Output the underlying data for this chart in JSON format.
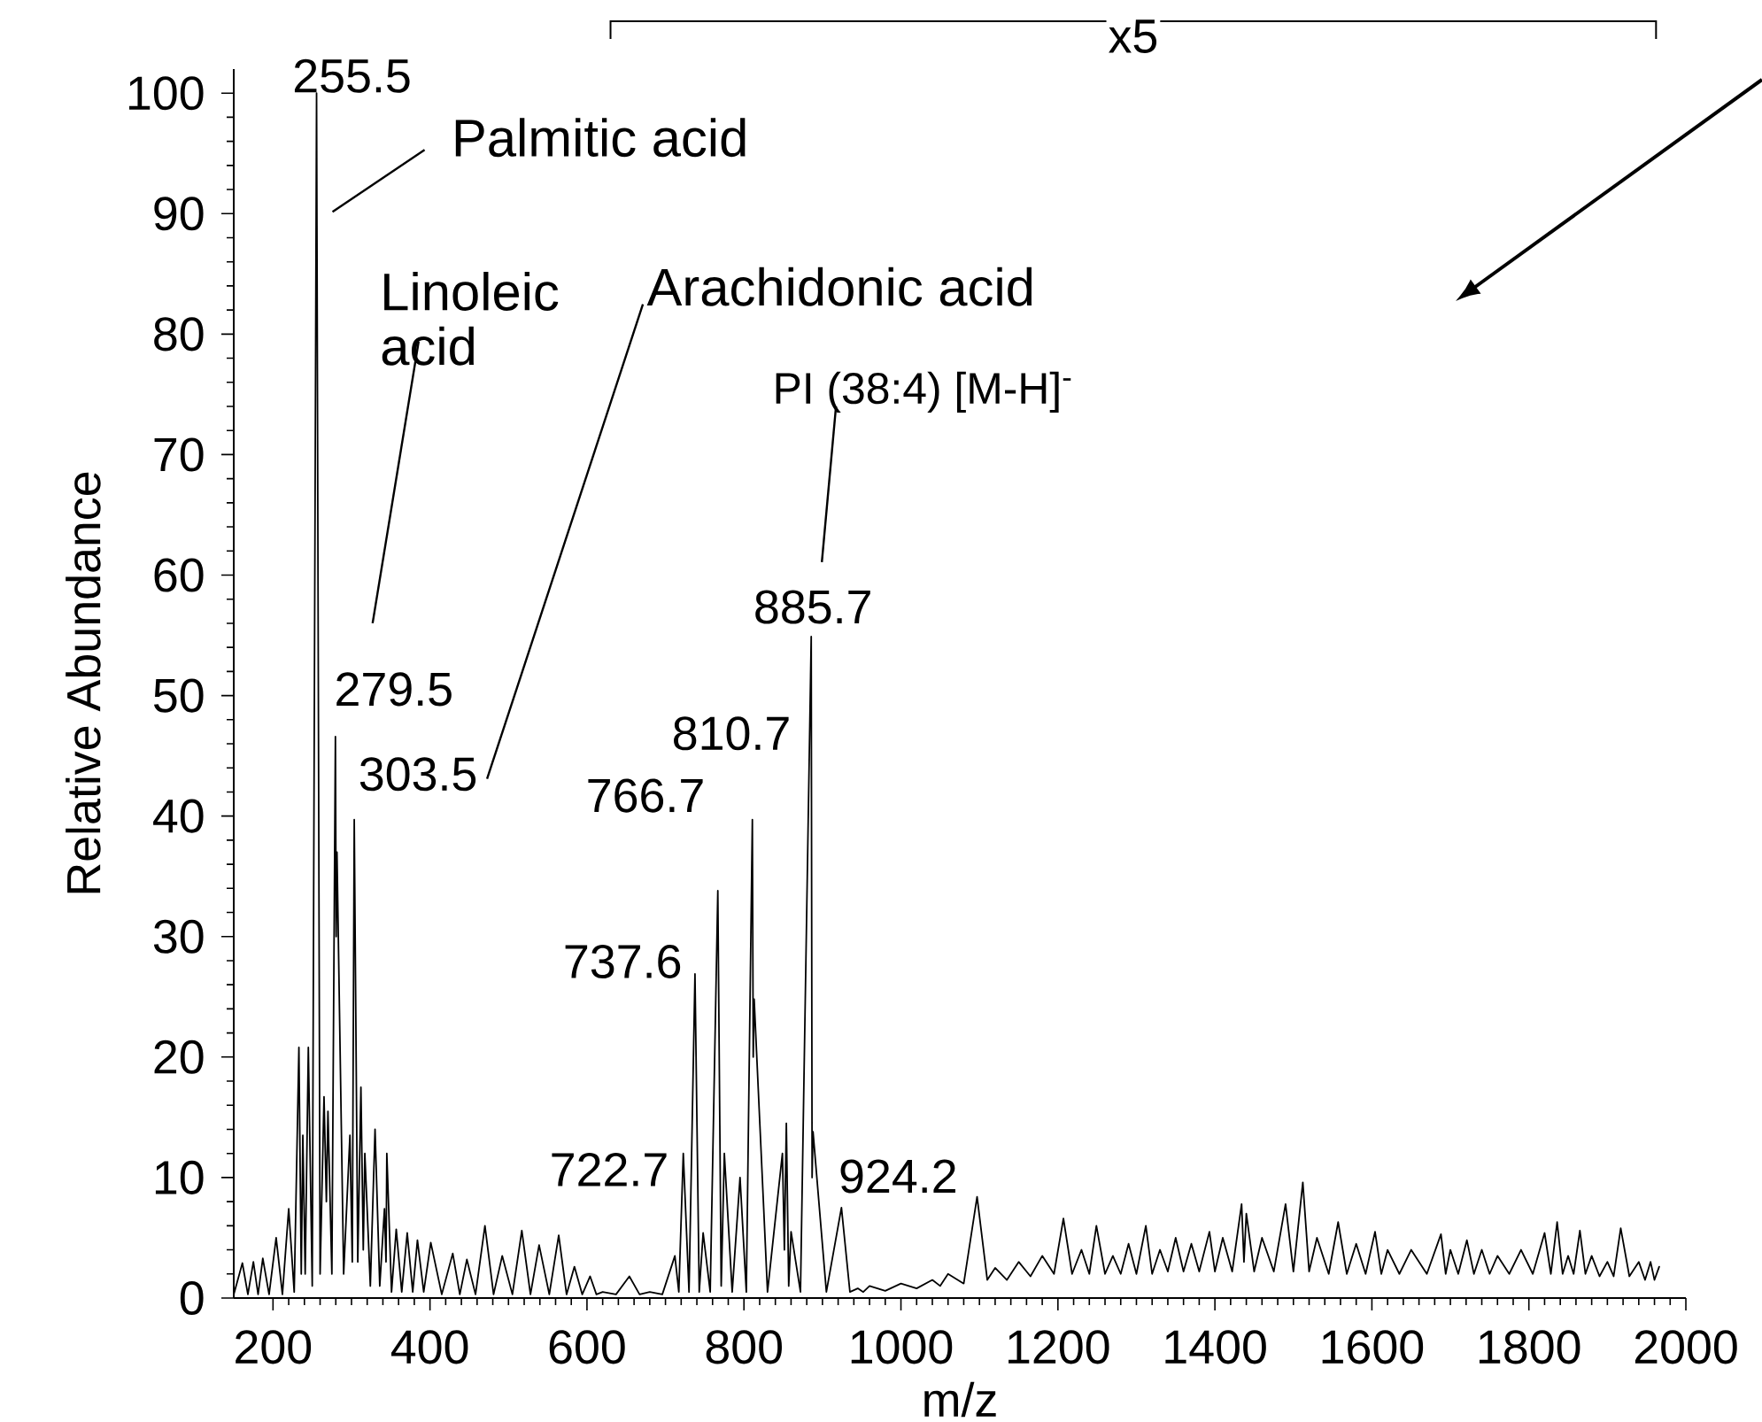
{
  "chart_data": {
    "type": "line",
    "xlabel": "m/z",
    "ylabel": "Relative Abundance",
    "x": [
      150,
      161,
      168,
      175,
      181,
      187,
      195,
      204,
      212,
      220,
      227,
      233,
      236,
      238,
      241,
      245,
      250,
      255.5,
      260,
      265,
      268,
      270,
      275,
      279.5,
      280.5,
      281.5,
      290,
      298,
      301,
      303.5,
      308,
      312,
      315,
      317,
      324,
      330,
      336,
      342,
      344,
      345,
      351,
      357,
      364,
      371,
      378,
      384,
      392,
      401,
      415,
      429,
      438,
      447,
      458,
      470,
      481,
      492,
      505,
      517,
      528,
      539,
      552,
      564,
      574,
      584,
      594,
      604,
      612,
      620,
      637,
      654,
      667,
      680,
      696,
      712,
      717,
      722.7,
      730,
      737.6,
      743,
      748,
      757,
      766.7,
      771,
      775,
      785,
      795,
      803,
      810.7,
      811.8,
      813,
      830,
      849,
      851.5,
      854,
      857,
      860,
      872,
      885.7,
      886.8,
      888,
      905,
      924.2,
      935,
      945,
      952,
      960,
      980,
      1000,
      1020,
      1040,
      1050,
      1060,
      1080,
      1097,
      1110,
      1120,
      1135,
      1150,
      1165,
      1180,
      1195,
      1207,
      1218,
      1230,
      1240,
      1249,
      1260,
      1270,
      1280,
      1290,
      1300,
      1312,
      1320,
      1330,
      1340,
      1350,
      1360,
      1370,
      1380,
      1393,
      1400,
      1410,
      1422,
      1434,
      1437,
      1440,
      1450,
      1460,
      1475,
      1490,
      1500,
      1512,
      1520,
      1530,
      1545,
      1557,
      1568,
      1580,
      1592,
      1604,
      1612,
      1620,
      1635,
      1650,
      1670,
      1688,
      1694,
      1700,
      1710,
      1721,
      1730,
      1740,
      1750,
      1760,
      1775,
      1790,
      1805,
      1820,
      1828,
      1836,
      1843,
      1850,
      1857,
      1865,
      1872,
      1880,
      1890,
      1900,
      1908,
      1917,
      1928,
      1940,
      1948,
      1955,
      1960,
      1966
    ],
    "values": [
      0.3,
      2.9,
      0.3,
      3,
      0.3,
      3.3,
      0.3,
      5,
      0.3,
      7.4,
      0.5,
      20.8,
      2,
      13.5,
      2,
      20.8,
      1,
      100,
      2,
      16.7,
      8,
      15.5,
      2,
      46.6,
      30,
      37,
      2,
      13.5,
      3,
      39.7,
      3,
      17.5,
      4,
      12,
      1,
      14,
      1,
      7.4,
      3,
      12,
      0.5,
      5.7,
      0.5,
      5.4,
      0.5,
      4.8,
      0.5,
      4.6,
      0.3,
      3.7,
      0.3,
      3.2,
      0.3,
      6,
      0.3,
      3.5,
      0.3,
      5.6,
      0.3,
      4.4,
      0.3,
      5.2,
      0.3,
      2.6,
      0.3,
      1.8,
      0.3,
      0.5,
      0.3,
      1.8,
      0.3,
      0.5,
      0.3,
      3.5,
      0.5,
      12,
      0.5,
      26.9,
      0.5,
      5.4,
      0.5,
      33.8,
      1,
      12,
      0.5,
      10,
      0.5,
      39.7,
      20,
      24.8,
      0.5,
      12,
      4,
      14.5,
      1,
      5.5,
      0.5,
      54.9,
      10,
      13.8,
      0.5,
      7.5,
      0.5,
      0.8,
      0.5,
      1,
      0.6,
      1.2,
      0.8,
      1.5,
      1,
      2,
      1.2,
      8.4,
      1.5,
      2.5,
      1.5,
      3,
      1.8,
      3.5,
      2,
      6.6,
      2,
      4,
      2,
      6,
      2,
      3.5,
      2,
      4.5,
      2,
      6,
      2,
      4,
      2.2,
      5,
      2.2,
      4.5,
      2.2,
      5.5,
      2.2,
      5,
      2.2,
      7.8,
      3,
      7,
      2.2,
      5,
      2.2,
      7.8,
      2.2,
      9.6,
      2.2,
      5,
      2,
      6.3,
      2,
      4.5,
      2,
      5.5,
      2,
      4,
      2,
      4,
      2,
      5.3,
      2,
      4,
      2,
      4.8,
      2,
      4,
      2,
      3.5,
      2,
      4,
      2,
      5.4,
      2,
      6.3,
      2,
      3.5,
      2,
      5.6,
      2,
      3.5,
      1.8,
      3,
      1.8,
      5.8,
      1.8,
      3,
      1.5,
      3,
      1.5,
      2.6
    ],
    "color": "#000000",
    "xlim": [
      150,
      2000
    ],
    "ylim": [
      0,
      102
    ],
    "xticks": [
      200,
      400,
      600,
      800,
      1000,
      1200,
      1400,
      1600,
      1800,
      2000
    ],
    "yticks": [
      0,
      10,
      20,
      30,
      40,
      50,
      60,
      70,
      80,
      90,
      100
    ],
    "annotations": [
      "x5",
      {
        "text": "255.5",
        "x": 255.5,
        "y": 100
      },
      {
        "text": "Palmitic acid",
        "x": 255.5,
        "y": 100
      },
      {
        "text": "279.5",
        "x": 279.5,
        "y": 46.6
      },
      "Linoleic acid",
      {
        "text": "303.5",
        "x": 303.5,
        "y": 39.7
      },
      "Arachidonic acid",
      {
        "text": "722.7",
        "x": 722.7,
        "y": 12
      },
      {
        "text": "737.6",
        "x": 737.6,
        "y": 26.9
      },
      {
        "text": "766.7",
        "x": 766.7,
        "y": 33.8
      },
      {
        "text": "810.7",
        "x": 810.7,
        "y": 39.7
      },
      {
        "text": "885.7",
        "x": 885.7,
        "y": 54.9
      },
      "PI (38:4) [M-H]$^{-}$",
      {
        "text": "924.2",
        "x": 924.2,
        "y": 7.5
      }
    ]
  }
}
